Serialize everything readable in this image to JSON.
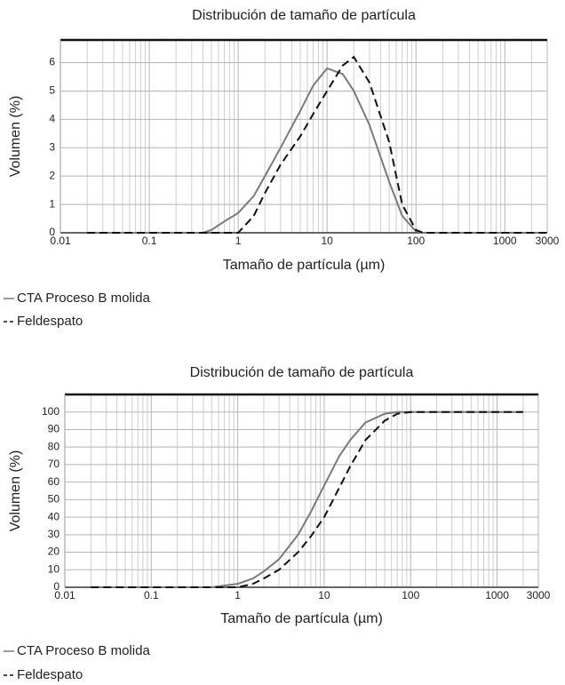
{
  "chart_data": [
    {
      "type": "line",
      "title": "Distribución de tamaño de partícula",
      "xlabel": "Tamaño de partícula (µm)",
      "ylabel": "Volumen (%)",
      "xscale": "log",
      "grid": true,
      "minor_grid": true,
      "legend": "bottom-left",
      "xlim": [
        0.01,
        3000
      ],
      "xticks": [
        0.01,
        0.1,
        1,
        10,
        100,
        1000,
        3000
      ],
      "ylim": [
        0,
        6.8
      ],
      "yticks": [
        0,
        1,
        2,
        3,
        4,
        5,
        6
      ],
      "x": [
        0.02,
        0.4,
        0.5,
        0.7,
        1,
        1.5,
        2,
        3,
        5,
        7,
        10,
        15,
        20,
        30,
        50,
        70,
        100,
        120,
        3000
      ],
      "series": [
        {
          "name": "CTA Proceso B molida",
          "color": "#7a7a7a",
          "dash": "solid",
          "values": [
            0,
            0,
            0.1,
            0.4,
            0.7,
            1.3,
            2.0,
            3.0,
            4.3,
            5.2,
            5.8,
            5.6,
            5.0,
            3.8,
            1.8,
            0.6,
            0.05,
            0,
            0
          ]
        },
        {
          "name": "Feldespato",
          "color": "#111111",
          "dash": "dashed",
          "values": [
            0,
            0,
            0,
            0,
            0,
            0.6,
            1.4,
            2.4,
            3.4,
            4.2,
            5.0,
            5.9,
            6.2,
            5.3,
            3.2,
            1.0,
            0.1,
            0,
            0
          ]
        }
      ]
    },
    {
      "type": "line",
      "title": "Distribución de tamaño de partícula",
      "xlabel": "Tamaño de partícula (µm)",
      "ylabel": "Volumen (%)",
      "xscale": "log",
      "grid": true,
      "minor_grid": true,
      "legend": "bottom-left",
      "xlim": [
        0.01,
        3000
      ],
      "xticks": [
        0.01,
        0.1,
        1,
        10,
        100,
        1000,
        3000
      ],
      "ylim": [
        0,
        110
      ],
      "yticks": [
        0,
        10,
        20,
        30,
        40,
        50,
        60,
        70,
        80,
        90,
        100
      ],
      "x": [
        0.02,
        0.5,
        1,
        1.5,
        2,
        3,
        5,
        7,
        10,
        15,
        20,
        30,
        50,
        70,
        100,
        2000
      ],
      "series": [
        {
          "name": "CTA Proceso B molida",
          "color": "#7a7a7a",
          "dash": "solid",
          "values": [
            0,
            0,
            2,
            5,
            9,
            16,
            30,
            43,
            58,
            75,
            84,
            94,
            99,
            100,
            100,
            100
          ]
        },
        {
          "name": "Feldespato",
          "color": "#111111",
          "dash": "dashed",
          "values": [
            0,
            0,
            0,
            2,
            5,
            10,
            20,
            29,
            40,
            57,
            69,
            84,
            95,
            99,
            100,
            100
          ]
        }
      ]
    }
  ]
}
